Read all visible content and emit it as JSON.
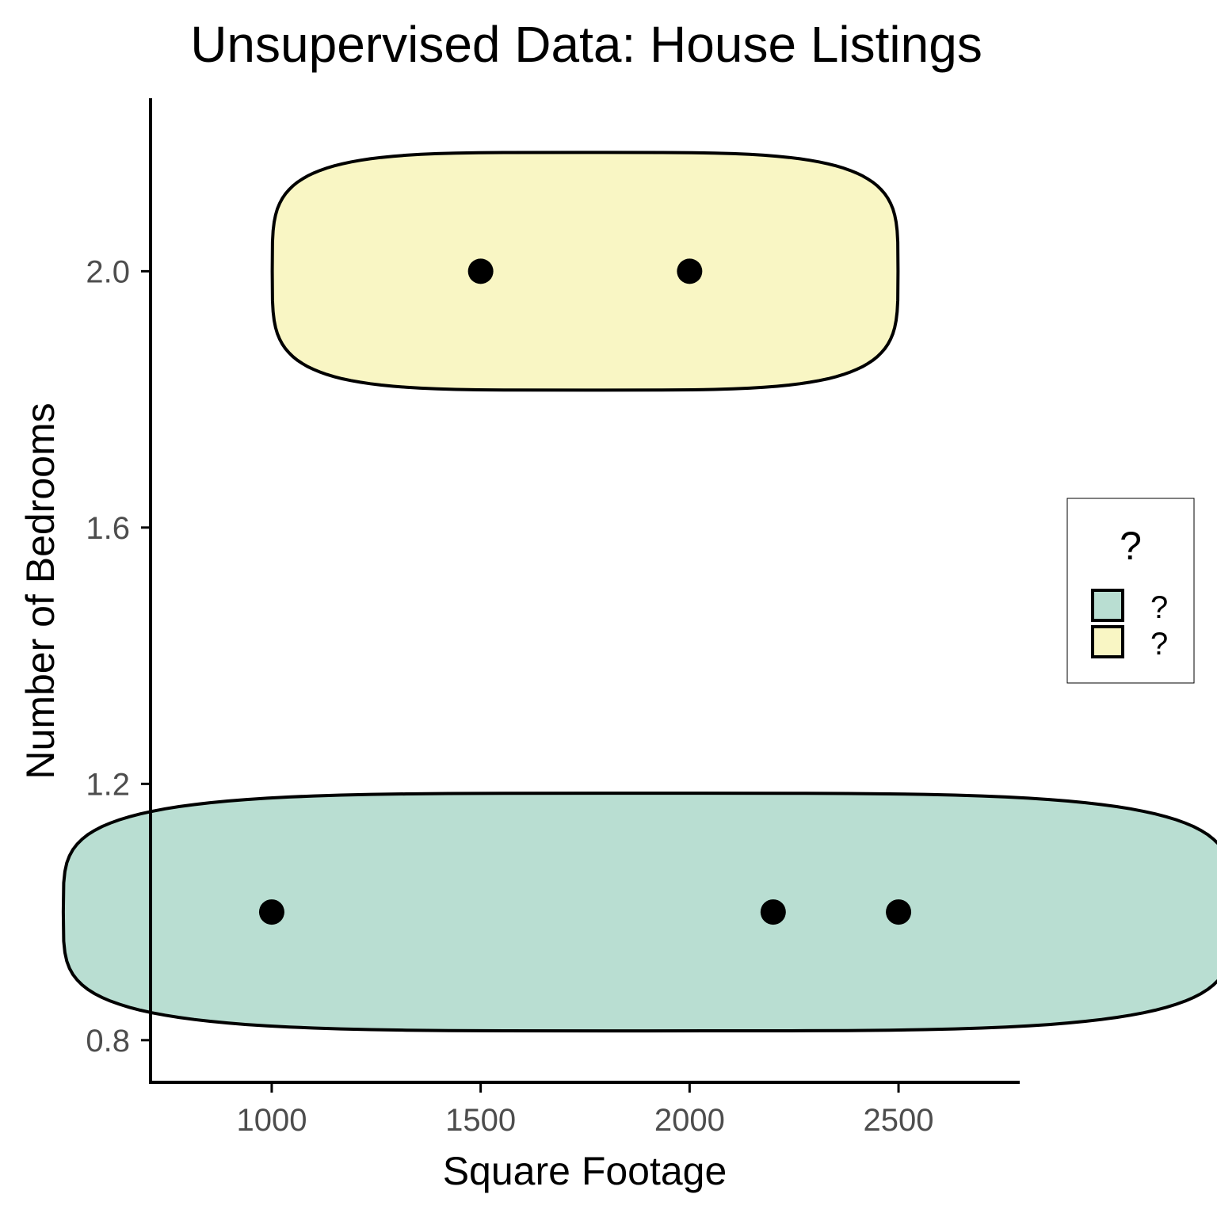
{
  "chart_data": {
    "type": "scatter",
    "title": "Unsupervised Data: House Listings",
    "xlabel": "Square Footage",
    "ylabel": "Number of Bedrooms",
    "xlim": [
      710,
      2790
    ],
    "ylim": [
      0.733,
      2.27
    ],
    "x_ticks": [
      1000,
      1500,
      2000,
      2500
    ],
    "x_tick_labels": [
      "1000",
      "1500",
      "2000",
      "2500"
    ],
    "y_ticks": [
      0.8,
      1.2,
      1.6,
      2.0
    ],
    "y_tick_labels": [
      "0.8",
      "1.2",
      "1.6",
      "2.0"
    ],
    "grid": false,
    "legend": {
      "title": "?",
      "placement": "right",
      "entries": [
        {
          "label": "?",
          "color": "#b9ded2"
        },
        {
          "label": "?",
          "color": "#f9f6c4"
        }
      ]
    },
    "groups": [
      {
        "legend_label": "?",
        "fill": "#b9ded2",
        "points": [
          {
            "x": 1000,
            "y": 1.0
          },
          {
            "x": 2200,
            "y": 1.0
          },
          {
            "x": 2500,
            "y": 1.0
          }
        ]
      },
      {
        "legend_label": "?",
        "fill": "#f9f6c4",
        "points": [
          {
            "x": 1500,
            "y": 2.0
          },
          {
            "x": 2000,
            "y": 2.0
          }
        ]
      }
    ],
    "point_color": "#000000"
  }
}
